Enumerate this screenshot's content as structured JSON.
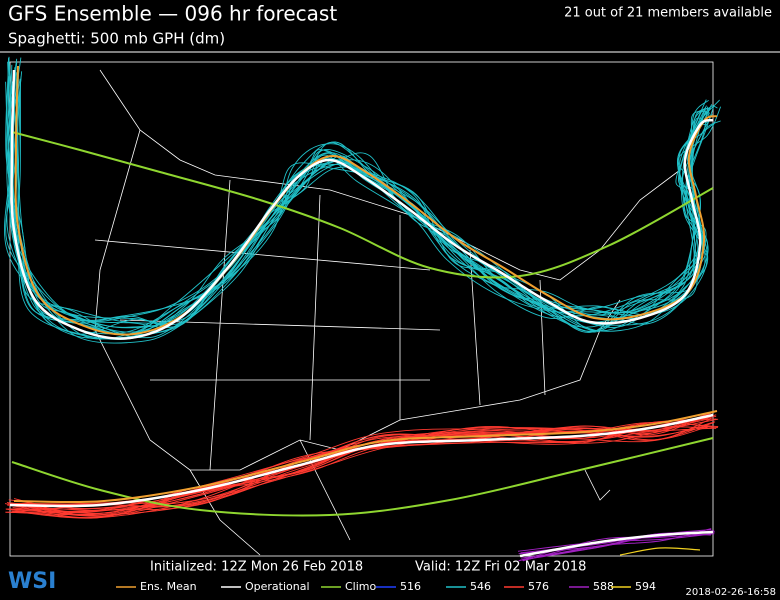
{
  "header": {
    "title": "GFS Ensemble — 096 hr forecast",
    "subtitle": "Spaghetti: 500 mb GPH (dm)",
    "members": "21 out of 21 members available"
  },
  "footer": {
    "initialized": "Initialized: 12Z Mon 26 Feb 2018",
    "valid": "Valid: 12Z Fri 02 Mar 2018",
    "timestamp": "2018-02-26-16:58",
    "logo": "WSI"
  },
  "legend": [
    {
      "label": "Ens. Mean",
      "color": "#f0a030"
    },
    {
      "label": "Operational",
      "color": "#ffffff"
    },
    {
      "label": "Climo",
      "color": "#8fd630"
    },
    {
      "label": "516",
      "color": "#2040ff"
    },
    {
      "label": "546",
      "color": "#20c0c8"
    },
    {
      "label": "576",
      "color": "#ff3a30"
    },
    {
      "label": "588",
      "color": "#a020c0"
    },
    {
      "label": "594",
      "color": "#f0d020"
    }
  ]
}
